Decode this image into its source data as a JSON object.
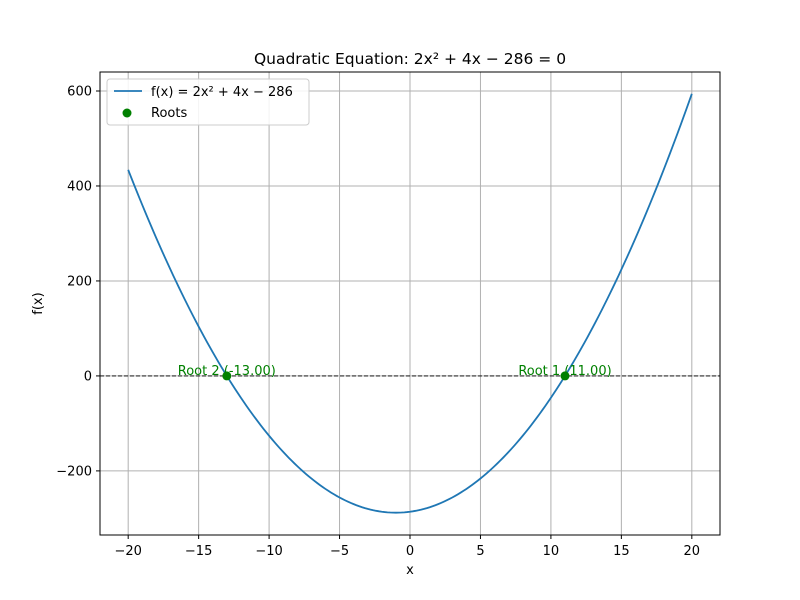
{
  "chart_data": {
    "type": "line",
    "title": "Quadratic Equation: 2x² + 4x − 286 = 0",
    "xlabel": "x",
    "ylabel": "f(x)",
    "xlim": [
      -22,
      22
    ],
    "ylim": [
      -335,
      640
    ],
    "xticks": [
      -20,
      -15,
      -10,
      -5,
      0,
      5,
      10,
      15,
      20
    ],
    "xtick_labels": [
      "−20",
      "−15",
      "−10",
      "−5",
      "0",
      "5",
      "10",
      "15",
      "20"
    ],
    "yticks": [
      -200,
      0,
      200,
      400,
      600
    ],
    "ytick_labels": [
      "−200",
      "0",
      "200",
      "400",
      "600"
    ],
    "grid": true,
    "legend_position": "top-left",
    "function": {
      "a": 2,
      "b": 4,
      "c": -286,
      "x_range": [
        -20,
        20
      ]
    },
    "series": [
      {
        "name": "f(x) = 2x² + 4x − 286",
        "kind": "line",
        "color": "#1f77b4"
      },
      {
        "name": "Roots",
        "kind": "scatter",
        "color": "#008000",
        "points": [
          {
            "x": 11,
            "y": 0,
            "label": "Root 1 (11.00)"
          },
          {
            "x": -13,
            "y": 0,
            "label": "Root 2 (-13.00)"
          }
        ]
      }
    ],
    "reference_line": {
      "y": 0,
      "style": "dashed",
      "color": "#000000"
    }
  }
}
